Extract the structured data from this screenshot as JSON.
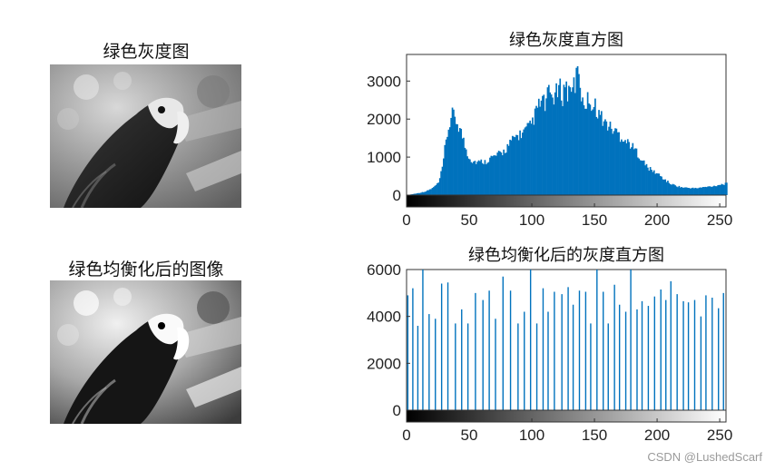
{
  "panels": {
    "green_gray_title": "绿色灰度图",
    "green_eq_title": "绿色均衡化后的图像"
  },
  "watermark": "CSDN @LushedScarf",
  "accent_color": "#0072BD",
  "chart_data": [
    {
      "type": "bar",
      "title": "绿色灰度直方图",
      "xlim": [
        0,
        255
      ],
      "ylim": [
        0,
        3700
      ],
      "xticks": [
        0,
        50,
        100,
        150,
        200,
        250
      ],
      "yticks": [
        0,
        1000,
        2000,
        3000
      ],
      "grid": false,
      "colorbar": "gray",
      "color": "#0072BD",
      "x": [
        0,
        5,
        10,
        15,
        20,
        25,
        28,
        30,
        32,
        34,
        36,
        38,
        40,
        42,
        44,
        46,
        48,
        50,
        52,
        55,
        58,
        60,
        62,
        65,
        68,
        70,
        72,
        75,
        78,
        80,
        83,
        85,
        88,
        90,
        93,
        95,
        98,
        100,
        102,
        104,
        106,
        108,
        110,
        112,
        114,
        116,
        118,
        120,
        122,
        124,
        126,
        128,
        130,
        132,
        134,
        136,
        137,
        138,
        140,
        142,
        144,
        146,
        148,
        150,
        152,
        154,
        156,
        158,
        160,
        163,
        165,
        168,
        170,
        173,
        175,
        178,
        180,
        183,
        185,
        188,
        190,
        193,
        195,
        198,
        200,
        205,
        210,
        215,
        220,
        225,
        230,
        235,
        240,
        245,
        250,
        255
      ],
      "values": [
        0,
        30,
        60,
        100,
        180,
        320,
        700,
        1200,
        1600,
        1900,
        2100,
        2050,
        1900,
        1750,
        1550,
        1300,
        1100,
        980,
        900,
        880,
        860,
        900,
        870,
        950,
        1000,
        1020,
        1050,
        1100,
        1180,
        1280,
        1380,
        1500,
        1560,
        1600,
        1650,
        1720,
        1800,
        1950,
        2100,
        2300,
        2400,
        2500,
        2350,
        2600,
        2700,
        2550,
        2650,
        2700,
        2800,
        2600,
        2950,
        2700,
        2800,
        3000,
        2650,
        3650,
        3000,
        2650,
        2600,
        2400,
        2500,
        2550,
        2300,
        2350,
        2200,
        2100,
        2000,
        1900,
        1850,
        1750,
        1700,
        1650,
        1550,
        1500,
        1400,
        1350,
        1250,
        1150,
        1050,
        900,
        800,
        700,
        650,
        600,
        560,
        420,
        300,
        240,
        200,
        190,
        180,
        200,
        220,
        240,
        280,
        300
      ]
    },
    {
      "type": "bar",
      "title": "绿色均衡化后的灰度直方图",
      "xlim": [
        0,
        255
      ],
      "ylim": [
        0,
        6000
      ],
      "xticks": [
        0,
        50,
        100,
        150,
        200,
        250
      ],
      "yticks": [
        0,
        2000,
        4000,
        6000
      ],
      "grid": false,
      "colorbar": "gray",
      "color": "#0072BD",
      "x": [
        1,
        5,
        9,
        13,
        18,
        23,
        28,
        33,
        39,
        44,
        49,
        55,
        61,
        66,
        71,
        77,
        83,
        89,
        94,
        99,
        104,
        109,
        113,
        118,
        124,
        129,
        133,
        138,
        143,
        147,
        152,
        157,
        161,
        166,
        170,
        175,
        179,
        184,
        188,
        193,
        198,
        203,
        207,
        211,
        216,
        221,
        225,
        230,
        235,
        239,
        244,
        249,
        253
      ],
      "values": [
        4900,
        5200,
        3600,
        6000,
        4100,
        3900,
        5400,
        5450,
        3700,
        4300,
        3700,
        5000,
        4700,
        5100,
        3900,
        5700,
        5100,
        3700,
        4200,
        6000,
        3700,
        5200,
        4200,
        5050,
        4950,
        5250,
        4500,
        5100,
        5050,
        3700,
        6000,
        5050,
        3700,
        5350,
        4500,
        4200,
        6000,
        4300,
        4650,
        4450,
        4850,
        5150,
        4700,
        5500,
        4950,
        4650,
        4600,
        4700,
        4000,
        4900,
        4800,
        4350,
        5000
      ]
    }
  ]
}
